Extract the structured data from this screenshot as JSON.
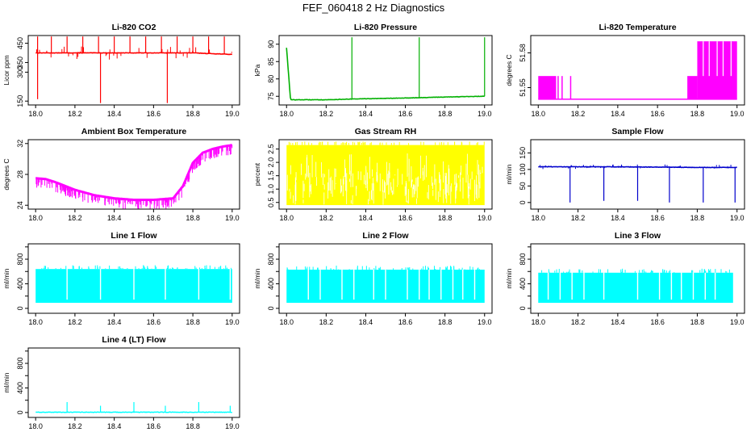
{
  "figure": {
    "title": "FEF_060418  2 Hz Diagnostics"
  },
  "chart_data": [
    {
      "id": "co2",
      "type": "line",
      "title": "Li-820 CO2",
      "ylabel": "Licor ppm",
      "xlabel": "",
      "xlim": [
        18.0,
        19.0
      ],
      "ylim": [
        130,
        490
      ],
      "xticks": [
        18.0,
        18.2,
        18.4,
        18.6,
        18.8,
        19.0
      ],
      "yticks": [
        150,
        300,
        350,
        450
      ],
      "color": "#ff0000",
      "series": [
        {
          "x": [
            18.0,
            18.2,
            18.4,
            18.6,
            18.8,
            19.0
          ],
          "values": [
            400,
            400,
            400,
            400,
            400,
            392
          ],
          "spikes_up": [
            [
              18.01,
              485
            ],
            [
              18.08,
              485
            ],
            [
              18.16,
              485
            ],
            [
              18.24,
              485
            ],
            [
              18.32,
              485
            ],
            [
              18.4,
              485
            ],
            [
              18.48,
              485
            ],
            [
              18.56,
              485
            ],
            [
              18.64,
              485
            ],
            [
              18.72,
              485
            ],
            [
              18.8,
              485
            ],
            [
              18.88,
              485
            ],
            [
              18.96,
              485
            ]
          ],
          "spikes_down": [
            [
              18.01,
              160
            ],
            [
              18.33,
              140
            ],
            [
              18.67,
              140
            ]
          ]
        }
      ]
    },
    {
      "id": "pressure",
      "type": "line",
      "title": "Li-820 Pressure",
      "ylabel": "kPa",
      "xlabel": "",
      "xlim": [
        18.0,
        19.0
      ],
      "ylim": [
        72.5,
        92.5
      ],
      "xticks": [
        18.0,
        18.2,
        18.4,
        18.6,
        18.8,
        19.0
      ],
      "yticks": [
        75,
        80,
        85,
        90
      ],
      "color": "#00b000",
      "series": [
        {
          "x": [
            18.0,
            18.02,
            18.2,
            18.4,
            18.6,
            18.8,
            19.0
          ],
          "values": [
            89,
            74,
            74,
            74.3,
            74.5,
            74.8,
            75
          ],
          "spikes_up": [
            [
              18.33,
              92
            ],
            [
              18.67,
              92
            ],
            [
              19.0,
              92
            ]
          ]
        }
      ]
    },
    {
      "id": "temperature",
      "type": "area",
      "title": "Li-820 Temperature",
      "ylabel": "degrees C",
      "xlabel": "",
      "xlim": [
        18.0,
        19.0
      ],
      "ylim": [
        51.535,
        51.595
      ],
      "xticks": [
        18.0,
        18.2,
        18.4,
        18.6,
        18.8,
        19.0
      ],
      "yticks": [
        51.55,
        51.58
      ],
      "ytick_labels": [
        "51.55",
        "51.58"
      ],
      "color": "#ff00ff",
      "series": [
        {
          "x": [
            18.0,
            18.09,
            18.1,
            18.15,
            18.16,
            18.75,
            18.76,
            18.8,
            18.81,
            19.0
          ],
          "values": [
            51.56,
            51.56,
            51.54,
            51.54,
            51.56,
            51.54,
            51.56,
            51.56,
            51.59,
            51.59
          ]
        }
      ]
    },
    {
      "id": "ambient",
      "type": "line",
      "title": "Ambient Box Temperature",
      "ylabel": "degrees C",
      "xlabel": "",
      "xlim": [
        18.0,
        19.0
      ],
      "ylim": [
        23.5,
        32.5
      ],
      "xticks": [
        18.0,
        18.2,
        18.4,
        18.6,
        18.8,
        19.0
      ],
      "yticks": [
        24,
        28,
        32
      ],
      "color": "#ff00ff",
      "series": [
        {
          "x": [
            18.0,
            18.05,
            18.1,
            18.2,
            18.3,
            18.4,
            18.5,
            18.6,
            18.7,
            18.75,
            18.8,
            18.85,
            18.9,
            18.95,
            19.0
          ],
          "values": [
            27.5,
            27.4,
            27,
            26,
            25.3,
            24.9,
            24.7,
            24.7,
            24.9,
            26.5,
            29.5,
            30.8,
            31.3,
            31.6,
            31.8
          ]
        }
      ]
    },
    {
      "id": "rh",
      "type": "area",
      "title": "Gas Stream RH",
      "ylabel": "percent",
      "xlabel": "",
      "xlim": [
        18.0,
        19.0
      ],
      "ylim": [
        0.25,
        2.85
      ],
      "xticks": [
        18.0,
        18.2,
        18.4,
        18.6,
        18.8,
        19.0
      ],
      "yticks": [
        0.5,
        1.0,
        1.5,
        2.0,
        2.5
      ],
      "ytick_labels": [
        "0.5",
        "1.0",
        "1.5",
        "2.0",
        "2.5"
      ],
      "color": "#ffff00",
      "series": [
        {
          "x": [
            18.0,
            19.0
          ],
          "upper": [
            2.65,
            2.65
          ],
          "lower": [
            0.4,
            0.4
          ]
        }
      ]
    },
    {
      "id": "sampleflow",
      "type": "line",
      "title": "Sample Flow",
      "ylabel": "ml/min",
      "xlabel": "",
      "xlim": [
        18.0,
        19.0
      ],
      "ylim": [
        -20,
        190
      ],
      "xticks": [
        18.0,
        18.2,
        18.4,
        18.6,
        18.8,
        19.0
      ],
      "yticks": [
        0,
        50,
        100,
        150
      ],
      "color": "#0000cc",
      "series": [
        {
          "x": [
            18.0,
            18.2,
            18.4,
            18.6,
            18.8,
            19.0
          ],
          "values": [
            108,
            108,
            108,
            107,
            106,
            106
          ],
          "spikes_down": [
            [
              18.16,
              0
            ],
            [
              18.33,
              5
            ],
            [
              18.5,
              5
            ],
            [
              18.66,
              0
            ],
            [
              18.83,
              0
            ],
            [
              18.99,
              0
            ]
          ]
        }
      ]
    },
    {
      "id": "line1",
      "type": "area",
      "title": "Line 1 Flow",
      "ylabel": "ml/min",
      "xlabel": "",
      "xlim": [
        18.0,
        19.0
      ],
      "ylim": [
        -80,
        1050
      ],
      "xticks": [
        18.0,
        18.2,
        18.4,
        18.6,
        18.8,
        19.0
      ],
      "yticks": [
        0,
        400,
        800
      ],
      "ytick_minor": [
        200,
        600,
        1000
      ],
      "color": "#00ffff",
      "series": [
        {
          "x": [
            18.0,
            19.0
          ],
          "upper": [
            640,
            640
          ],
          "lower": [
            90,
            90
          ],
          "gaps": [
            18.16,
            18.33,
            18.5,
            18.66,
            18.83,
            18.99
          ]
        }
      ]
    },
    {
      "id": "line2",
      "type": "area",
      "title": "Line 2 Flow",
      "ylabel": "ml/min",
      "xlabel": "",
      "xlim": [
        18.0,
        19.0
      ],
      "ylim": [
        -80,
        1050
      ],
      "xticks": [
        18.0,
        18.2,
        18.4,
        18.6,
        18.8,
        19.0
      ],
      "yticks": [
        0,
        400,
        800
      ],
      "ytick_minor": [
        200,
        600,
        1000
      ],
      "color": "#00ffff",
      "series": [
        {
          "x": [
            18.0,
            19.0
          ],
          "upper": [
            630,
            630
          ],
          "lower": [
            90,
            90
          ],
          "gaps": [
            18.11,
            18.17,
            18.28,
            18.34,
            18.44,
            18.5,
            18.61,
            18.67,
            18.72,
            18.78,
            18.84,
            18.89,
            18.95
          ]
        }
      ]
    },
    {
      "id": "line3",
      "type": "area",
      "title": "Line 3 Flow",
      "ylabel": "ml/min",
      "xlabel": "",
      "xlim": [
        18.0,
        19.0
      ],
      "ylim": [
        -80,
        1050
      ],
      "xticks": [
        18.0,
        18.2,
        18.4,
        18.6,
        18.8,
        19.0
      ],
      "yticks": [
        0,
        400,
        800
      ],
      "ytick_minor": [
        200,
        600,
        1000
      ],
      "color": "#00ffff",
      "series": [
        {
          "x": [
            18.0,
            18.98
          ],
          "upper": [
            580,
            580
          ],
          "lower": [
            90,
            90
          ],
          "gaps": [
            18.05,
            18.11,
            18.17,
            18.23,
            18.33,
            18.5,
            18.61,
            18.67,
            18.72,
            18.78,
            18.84,
            18.89
          ]
        }
      ]
    },
    {
      "id": "line4",
      "type": "line",
      "title": "Line 4 (LT) Flow",
      "ylabel": "ml/min",
      "xlabel": "",
      "xlim": [
        18.0,
        19.0
      ],
      "ylim": [
        -80,
        1050
      ],
      "xticks": [
        18.0,
        18.2,
        18.4,
        18.6,
        18.8,
        19.0
      ],
      "yticks": [
        0,
        400,
        800
      ],
      "ytick_minor": [
        200,
        600,
        1000
      ],
      "color": "#00ffff",
      "series": [
        {
          "x": [
            18.0,
            19.0
          ],
          "values": [
            5,
            5
          ],
          "spikes_up": [
            [
              18.16,
              170
            ],
            [
              18.33,
              110
            ],
            [
              18.5,
              170
            ],
            [
              18.66,
              110
            ],
            [
              18.83,
              170
            ],
            [
              18.99,
              110
            ]
          ]
        }
      ]
    }
  ]
}
